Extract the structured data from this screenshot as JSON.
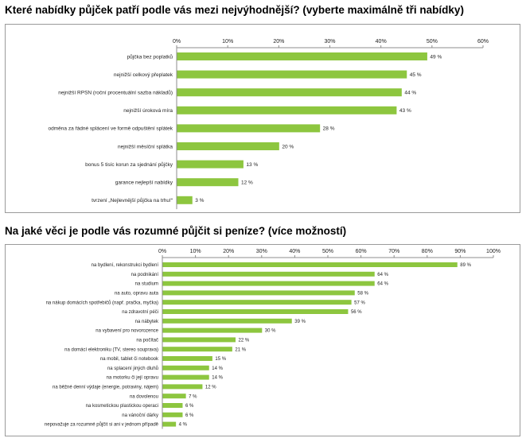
{
  "chart_data": [
    {
      "type": "bar",
      "orientation": "horizontal",
      "title": "Které nabídky půjček patří podle vás mezi nejvýhodnější? (vyberte maximálně tři nabídky)",
      "xlim": [
        0,
        60
      ],
      "xticks": [
        "0%",
        "10%",
        "20%",
        "30%",
        "40%",
        "50%",
        "60%"
      ],
      "grid": false,
      "bar_color": "#8dc63f",
      "categories": [
        "půjčka bez poplatků",
        "nejnižší celkový přeplatek",
        "nejnižší RPSN (roční procentuální sazba nákladů)",
        "nejnižší úroková míra",
        "odměna za řádné splácení ve formě odpuštění splátek",
        "nejnižší měsíční splátka",
        "bonus 5 tisíc korun za sjednání půjčky",
        "garance nejlepší nabídky",
        "tvrzení „Nejlevnější půjčka na trhu!“"
      ],
      "values": [
        49,
        45,
        44,
        43,
        28,
        20,
        13,
        12,
        3
      ],
      "value_labels": [
        "49 %",
        "45 %",
        "44 %",
        "43 %",
        "28 %",
        "20 %",
        "13 %",
        "12 %",
        "3 %"
      ]
    },
    {
      "type": "bar",
      "orientation": "horizontal",
      "title": "Na jaké věci je podle vás rozumné půjčit si peníze? (více možností)",
      "xlim": [
        0,
        100
      ],
      "xticks": [
        "0%",
        "10%",
        "20%",
        "30%",
        "40%",
        "50%",
        "60%",
        "70%",
        "80%",
        "90%",
        "100%"
      ],
      "grid": false,
      "bar_color": "#8dc63f",
      "categories": [
        "na bydlení, rekonstrukci bydlení",
        "na podnikání",
        "na studium",
        "na auto, opravu auta",
        "na nákup domácích spotřebičů (např. pračka, myčka)",
        "na zdravotní péči",
        "na nábytek",
        "na vybavení pro novorozence",
        "na počítač",
        "na domácí elektroniku (TV, stereo souprava)",
        "na mobil, tablet či notebook",
        "na splacení jiných dluhů",
        "na motorku či její opravu",
        "na běžné denní výdaje (energie, potraviny, nájem)",
        "na dovolenou",
        "na kosmetickou plastickou operaci",
        "na vánoční dárky",
        "nepovažuje za rozumné půjčit si ani v jednom případě"
      ],
      "values": [
        89,
        64,
        64,
        58,
        57,
        56,
        39,
        30,
        22,
        21,
        15,
        14,
        14,
        12,
        7,
        6,
        6,
        4
      ],
      "value_labels": [
        "89 %",
        "64 %",
        "64 %",
        "58 %",
        "57 %",
        "56 %",
        "39 %",
        "30 %",
        "22 %",
        "21 %",
        "15 %",
        "14 %",
        "14 %",
        "12 %",
        "7 %",
        "6 %",
        "6 %",
        "4 %"
      ]
    }
  ]
}
